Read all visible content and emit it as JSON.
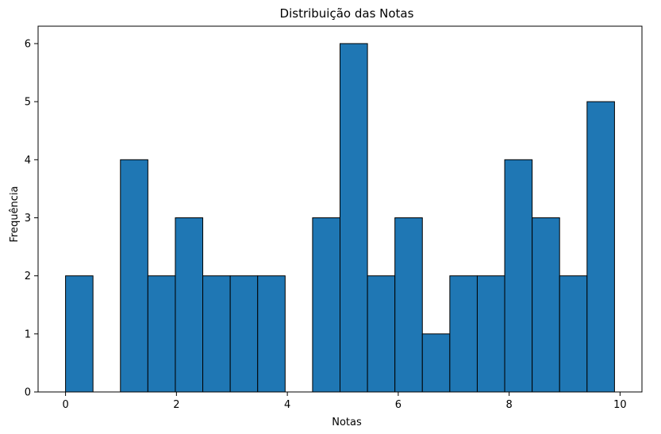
{
  "chart_data": {
    "type": "bar",
    "title": "Distribuição das Notas",
    "xlabel": "Notas",
    "ylabel": "Frequência",
    "bin_edges": [
      0,
      0.495,
      0.99,
      1.485,
      1.98,
      2.475,
      2.97,
      3.465,
      3.96,
      4.455,
      4.95,
      5.445,
      5.94,
      6.435,
      6.93,
      7.425,
      7.92,
      8.415,
      8.91,
      9.405,
      9.9
    ],
    "values": [
      2,
      0,
      4,
      2,
      3,
      2,
      2,
      2,
      0,
      3,
      6,
      2,
      3,
      1,
      2,
      2,
      4,
      3,
      2,
      5
    ],
    "xlim": [
      -0.495,
      10.395
    ],
    "ylim": [
      0,
      6.3
    ],
    "xticks": [
      0,
      2,
      4,
      6,
      8,
      10
    ],
    "yticks": [
      0,
      1,
      2,
      3,
      4,
      5,
      6
    ],
    "bar_color": "#1f77b4",
    "edge_color": "#000000",
    "grid": false,
    "legend": false
  }
}
